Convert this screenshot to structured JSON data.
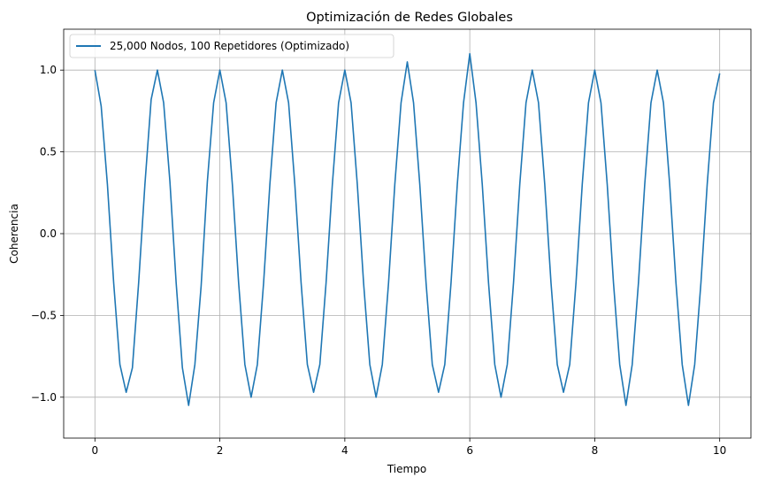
{
  "chart_data": {
    "type": "line",
    "title": "Optimización de Redes Globales",
    "xlabel": "Tiempo",
    "ylabel": "Coherencia",
    "xlim": [
      -0.5,
      10.5
    ],
    "ylim": [
      -1.25,
      1.25
    ],
    "x_ticks": [
      0,
      2,
      4,
      6,
      8,
      10
    ],
    "x_tick_labels": [
      "0",
      "2",
      "4",
      "6",
      "8",
      "10"
    ],
    "y_ticks": [
      -1.0,
      -0.5,
      0.0,
      0.5,
      1.0
    ],
    "y_tick_labels": [
      "−1.0",
      "−0.5",
      "0.0",
      "0.5",
      "1.0"
    ],
    "grid": true,
    "legend_position": "top-left",
    "series": [
      {
        "name": "25,000 Nodos, 100 Repetidores (Optimizado)",
        "color": "#1f77b4",
        "x": [
          0,
          0.1,
          0.2,
          0.3,
          0.4,
          0.5,
          0.6,
          0.7,
          0.8,
          0.9,
          1.0,
          1.1,
          1.2,
          1.3,
          1.4,
          1.5,
          1.6,
          1.7,
          1.8,
          1.9,
          2.0,
          2.1,
          2.2,
          2.3,
          2.4,
          2.5,
          2.6,
          2.7,
          2.8,
          2.9,
          3.0,
          3.1,
          3.2,
          3.3,
          3.4,
          3.5,
          3.6,
          3.7,
          3.8,
          3.9,
          4.0,
          4.1,
          4.2,
          4.3,
          4.4,
          4.5,
          4.6,
          4.7,
          4.8,
          4.9,
          5.0,
          5.1,
          5.2,
          5.3,
          5.4,
          5.5,
          5.6,
          5.7,
          5.8,
          5.9,
          6.0,
          6.1,
          6.2,
          6.3,
          6.4,
          6.5,
          6.6,
          6.7,
          6.8,
          6.9,
          7.0,
          7.1,
          7.2,
          7.3,
          7.4,
          7.5,
          7.6,
          7.7,
          7.8,
          7.9,
          8.0,
          8.1,
          8.2,
          8.3,
          8.4,
          8.5,
          8.6,
          8.7,
          8.8,
          8.9,
          9.0,
          9.1,
          9.2,
          9.3,
          9.4,
          9.5,
          9.6,
          9.7,
          9.8,
          9.9,
          10.0
        ],
        "values": [
          1.0,
          0.78,
          0.3,
          -0.3,
          -0.8,
          -0.97,
          -0.82,
          -0.3,
          0.3,
          0.82,
          1.0,
          0.8,
          0.32,
          -0.3,
          -0.82,
          -1.05,
          -0.8,
          -0.32,
          0.32,
          0.8,
          1.0,
          0.8,
          0.3,
          -0.3,
          -0.8,
          -1.0,
          -0.8,
          -0.3,
          0.3,
          0.8,
          1.0,
          0.8,
          0.3,
          -0.3,
          -0.8,
          -0.97,
          -0.8,
          -0.3,
          0.3,
          0.8,
          1.0,
          0.8,
          0.3,
          -0.3,
          -0.8,
          -1.0,
          -0.8,
          -0.3,
          0.3,
          0.8,
          1.05,
          0.8,
          0.3,
          -0.3,
          -0.8,
          -0.97,
          -0.8,
          -0.3,
          0.3,
          0.8,
          1.1,
          0.8,
          0.3,
          -0.3,
          -0.8,
          -1.0,
          -0.8,
          -0.3,
          0.3,
          0.8,
          1.0,
          0.8,
          0.3,
          -0.3,
          -0.8,
          -0.97,
          -0.8,
          -0.3,
          0.3,
          0.8,
          1.0,
          0.8,
          0.3,
          -0.3,
          -0.8,
          -1.05,
          -0.8,
          -0.3,
          0.3,
          0.8,
          1.0,
          0.8,
          0.3,
          -0.3,
          -0.8,
          -1.05,
          -0.8,
          -0.3,
          0.3,
          0.8,
          0.98
        ]
      }
    ]
  }
}
